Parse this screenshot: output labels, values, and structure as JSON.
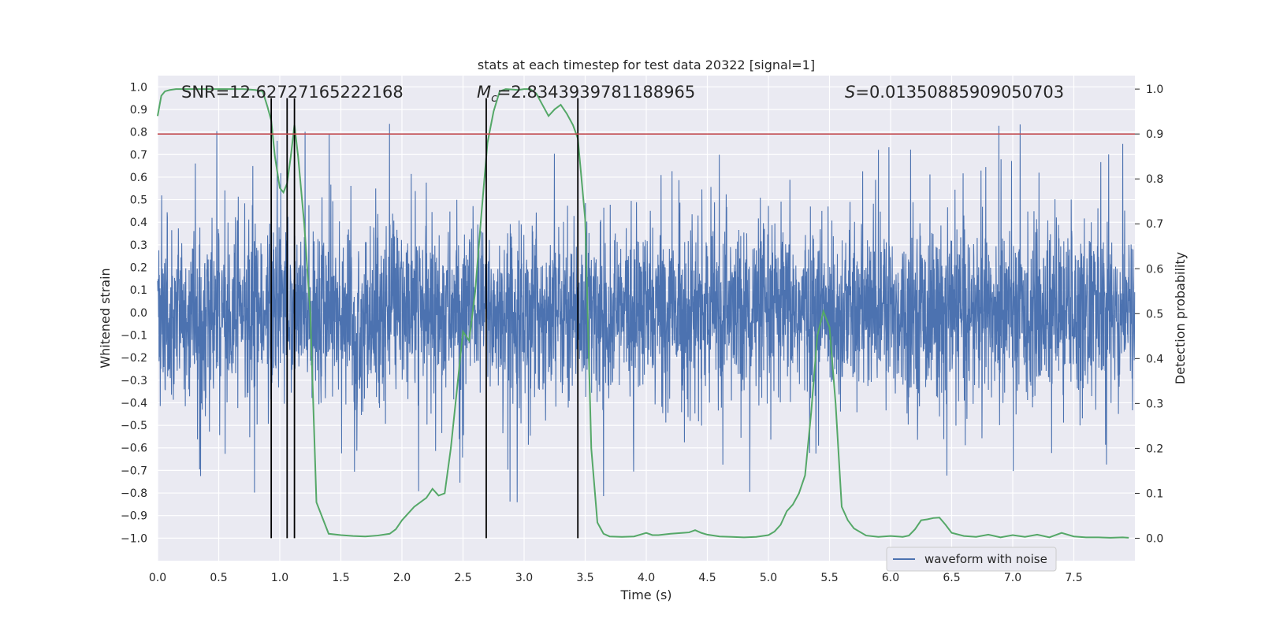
{
  "chart_data": {
    "type": "line",
    "title": "stats at each timestep for test data 20322 [signal=1]",
    "xlabel": "Time (s)",
    "ylabel_left": "Whitened strain",
    "ylabel_right": "Detection probability",
    "xlim": [
      0,
      8
    ],
    "ylim_left": [
      -1.1,
      1.05
    ],
    "ylim_right": [
      -0.05,
      1.03
    ],
    "x_ticks": [
      "0.0",
      "0.5",
      "1.0",
      "1.5",
      "2.0",
      "2.5",
      "3.0",
      "3.5",
      "4.0",
      "4.5",
      "5.0",
      "5.5",
      "6.0",
      "6.5",
      "7.0",
      "7.5"
    ],
    "y_left_ticks": [
      "1.0",
      "0.9",
      "0.8",
      "0.7",
      "0.6",
      "0.5",
      "0.4",
      "0.3",
      "0.2",
      "0.1",
      "0.0",
      "−0.1",
      "−0.2",
      "−0.3",
      "−0.4",
      "−0.5",
      "−0.6",
      "−0.7",
      "−0.8",
      "−0.9",
      "−1.0"
    ],
    "y_right_ticks": [
      "1.0",
      "0.9",
      "0.8",
      "0.7",
      "0.6",
      "0.5",
      "0.4",
      "0.3",
      "0.2",
      "0.1",
      "0.0"
    ],
    "annotations": {
      "snr": "SNR=12.62727165222168",
      "mc_prefix": "M",
      "mc_sub": "c",
      "mc_value": "=2.8343939781188965",
      "s_prefix": "S",
      "s_value": "=0.013508859090507​03"
    },
    "threshold": 0.9,
    "threshold_color": "#c44e52",
    "vertical_markers": [
      0.93,
      1.06,
      1.12,
      2.69,
      3.44
    ],
    "marker_y_range": [
      -1.0,
      0.95
    ],
    "strain": {
      "name": "waveform with noise",
      "color": "#4c72b0",
      "envelope": {
        "noise_sigma": 0.15,
        "spike_max": 0.95,
        "spike_min": -0.99
      }
    },
    "probability": {
      "color": "#55a868",
      "x": [
        0.0,
        0.03,
        0.06,
        0.1,
        0.15,
        0.2,
        0.3,
        0.4,
        0.5,
        0.6,
        0.7,
        0.8,
        0.86,
        0.9,
        0.93,
        0.96,
        1.0,
        1.03,
        1.06,
        1.09,
        1.12,
        1.15,
        1.2,
        1.25,
        1.3,
        1.4,
        1.5,
        1.6,
        1.7,
        1.8,
        1.9,
        1.95,
        2.0,
        2.1,
        2.2,
        2.25,
        2.3,
        2.35,
        2.4,
        2.45,
        2.5,
        2.55,
        2.6,
        2.65,
        2.7,
        2.75,
        2.8,
        2.85,
        2.9,
        2.95,
        3.0,
        3.05,
        3.1,
        3.15,
        3.2,
        3.25,
        3.3,
        3.35,
        3.4,
        3.44,
        3.5,
        3.55,
        3.6,
        3.65,
        3.7,
        3.8,
        3.9,
        4.0,
        4.05,
        4.1,
        4.2,
        4.3,
        4.35,
        4.4,
        4.45,
        4.5,
        4.6,
        4.7,
        4.8,
        4.9,
        5.0,
        5.05,
        5.1,
        5.15,
        5.2,
        5.25,
        5.3,
        5.35,
        5.4,
        5.45,
        5.5,
        5.55,
        5.6,
        5.65,
        5.7,
        5.8,
        5.9,
        6.0,
        6.1,
        6.15,
        6.2,
        6.25,
        6.3,
        6.35,
        6.4,
        6.45,
        6.5,
        6.6,
        6.7,
        6.8,
        6.9,
        7.0,
        7.1,
        7.2,
        7.3,
        7.4,
        7.5,
        7.6,
        7.7,
        7.8,
        7.9,
        7.95
      ],
      "y": [
        0.94,
        0.985,
        0.995,
        0.998,
        1.0,
        1.0,
        1.0,
        1.0,
        1.0,
        1.0,
        1.0,
        0.998,
        0.995,
        0.96,
        0.93,
        0.85,
        0.78,
        0.77,
        0.79,
        0.85,
        0.92,
        0.85,
        0.7,
        0.5,
        0.08,
        0.01,
        0.007,
        0.005,
        0.004,
        0.006,
        0.01,
        0.02,
        0.04,
        0.07,
        0.09,
        0.11,
        0.095,
        0.1,
        0.2,
        0.33,
        0.46,
        0.44,
        0.55,
        0.72,
        0.88,
        0.95,
        0.995,
        1.0,
        0.999,
        0.998,
        1.0,
        1.0,
        0.99,
        0.965,
        0.94,
        0.955,
        0.965,
        0.945,
        0.92,
        0.89,
        0.71,
        0.2,
        0.035,
        0.01,
        0.004,
        0.003,
        0.004,
        0.012,
        0.007,
        0.007,
        0.01,
        0.012,
        0.013,
        0.018,
        0.012,
        0.008,
        0.004,
        0.003,
        0.002,
        0.003,
        0.007,
        0.015,
        0.03,
        0.06,
        0.075,
        0.1,
        0.14,
        0.28,
        0.45,
        0.505,
        0.47,
        0.3,
        0.07,
        0.04,
        0.022,
        0.006,
        0.003,
        0.005,
        0.003,
        0.006,
        0.02,
        0.04,
        0.042,
        0.045,
        0.046,
        0.03,
        0.012,
        0.005,
        0.003,
        0.008,
        0.002,
        0.007,
        0.003,
        0.008,
        0.002,
        0.012,
        0.004,
        0.002,
        0.002,
        0.001,
        0.002,
        0.001
      ]
    },
    "legend": {
      "placement": "lower-center",
      "label": "waveform with noise"
    }
  }
}
